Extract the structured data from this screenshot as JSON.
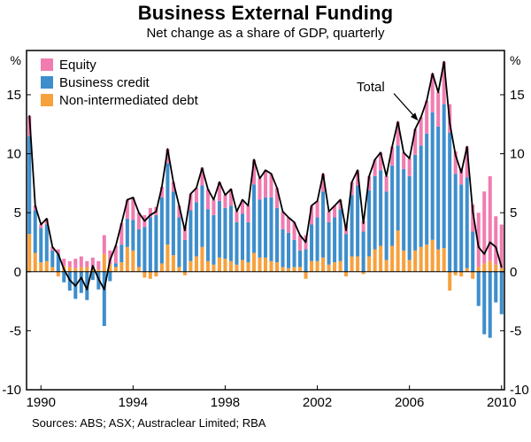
{
  "title": "Business External Funding",
  "subtitle": "Net change as a share of GDP, quarterly",
  "sources": "Sources: ABS; ASX; Austraclear Limited; RBA",
  "annotation": {
    "label": "Total"
  },
  "legend": [
    {
      "label": "Equity",
      "color": "#F17CB0"
    },
    {
      "label": "Business credit",
      "color": "#3E8ECC"
    },
    {
      "label": "Non-intermediated debt",
      "color": "#F7A13D"
    }
  ],
  "chart_data": {
    "type": "bar",
    "stacked": true,
    "grid": false,
    "legend_position": "top-left",
    "unit": "%",
    "ylim": [
      -10,
      18.75
    ],
    "yticks": [
      -10,
      -5,
      0,
      5,
      10,
      15
    ],
    "xticks": [
      {
        "label": "1990",
        "index": 2
      },
      {
        "label": "1994",
        "index": 18
      },
      {
        "label": "1998",
        "index": 34
      },
      {
        "label": "2002",
        "index": 50
      },
      {
        "label": "2006",
        "index": 66
      },
      {
        "label": "2010",
        "index": 82
      }
    ],
    "x_labels": [
      "1989Q3",
      "1989Q4",
      "1990Q1",
      "1990Q2",
      "1990Q3",
      "1990Q4",
      "1991Q1",
      "1991Q2",
      "1991Q3",
      "1991Q4",
      "1992Q1",
      "1992Q2",
      "1992Q3",
      "1992Q4",
      "1993Q1",
      "1993Q2",
      "1993Q3",
      "1993Q4",
      "1994Q1",
      "1994Q2",
      "1994Q3",
      "1994Q4",
      "1995Q1",
      "1995Q2",
      "1995Q3",
      "1995Q4",
      "1996Q1",
      "1996Q2",
      "1996Q3",
      "1996Q4",
      "1997Q1",
      "1997Q2",
      "1997Q3",
      "1997Q4",
      "1998Q1",
      "1998Q2",
      "1998Q3",
      "1998Q4",
      "1999Q1",
      "1999Q2",
      "1999Q3",
      "1999Q4",
      "2000Q1",
      "2000Q2",
      "2000Q3",
      "2000Q4",
      "2001Q1",
      "2001Q2",
      "2001Q3",
      "2001Q4",
      "2002Q1",
      "2002Q2",
      "2002Q3",
      "2002Q4",
      "2003Q1",
      "2003Q2",
      "2003Q3",
      "2003Q4",
      "2004Q1",
      "2004Q2",
      "2004Q3",
      "2004Q4",
      "2005Q1",
      "2005Q2",
      "2005Q3",
      "2005Q4",
      "2006Q1",
      "2006Q2",
      "2006Q3",
      "2006Q4",
      "2007Q1",
      "2007Q2",
      "2007Q3",
      "2007Q4",
      "2008Q1",
      "2008Q2",
      "2008Q3",
      "2008Q4",
      "2009Q1",
      "2009Q2",
      "2009Q3",
      "2009Q4",
      "2010Q1"
    ],
    "series": [
      {
        "name": "Equity",
        "type": "bar",
        "color": "#F17CB0",
        "values": [
          1.7,
          0.4,
          0.3,
          0.5,
          0.3,
          0.4,
          0.6,
          0.5,
          0.8,
          0.9,
          0.5,
          0.9,
          0.7,
          1.6,
          1.2,
          1.5,
          1.8,
          1.6,
          1.9,
          1.4,
          1.0,
          0.8,
          0.7,
          0.9,
          1.2,
          0.8,
          1.0,
          1.1,
          1.4,
          1.2,
          1.5,
          1.7,
          1.3,
          1.6,
          1.1,
          1.4,
          0.9,
          1.2,
          1.4,
          2.1,
          1.8,
          2.3,
          2.0,
          1.7,
          1.5,
          1.3,
          1.5,
          1.3,
          1.2,
          1.6,
          1.4,
          1.5,
          0.9,
          1.0,
          0.8,
          0.7,
          1.1,
          1.3,
          0.9,
          1.2,
          1.4,
          1.5,
          1.3,
          1.6,
          2.0,
          1.4,
          1.5,
          2.2,
          2.4,
          2.8,
          3.3,
          2.9,
          3.6,
          2.4,
          1.9,
          1.4,
          2.6,
          2.3,
          4.6,
          6.1,
          7.2,
          4.1,
          3.7
        ]
      },
      {
        "name": "Business credit",
        "type": "bar",
        "color": "#3E8ECC",
        "values": [
          8.3,
          3.6,
          2.9,
          3.1,
          1.4,
          1.5,
          -0.9,
          -1.6,
          -2.3,
          -1.8,
          -2.4,
          -0.7,
          -1.5,
          -4.6,
          -0.8,
          0.3,
          1.5,
          2.4,
          2.6,
          3.2,
          3.8,
          4.6,
          4.8,
          5.6,
          6.9,
          5.4,
          4.2,
          2.7,
          4.3,
          4.6,
          5.2,
          4.4,
          4.2,
          4.8,
          4.3,
          4.7,
          3.6,
          3.9,
          3.4,
          5.8,
          4.9,
          5.1,
          5.4,
          4.6,
          3.2,
          3.0,
          2.3,
          1.4,
          1.9,
          3.1,
          3.7,
          5.6,
          3.6,
          3.8,
          4.4,
          3.2,
          5.2,
          6.0,
          3.4,
          5.6,
          6.2,
          6.4,
          5.8,
          6.8,
          7.2,
          6.9,
          7.1,
          8.1,
          8.6,
          9.4,
          10.8,
          10.4,
          12.2,
          11.8,
          8.3,
          7.4,
          7.7,
          3.4,
          -2.9,
          -5.3,
          -5.6,
          -2.6,
          -3.6
        ]
      },
      {
        "name": "Non-intermediated debt",
        "type": "bar",
        "color": "#F7A13D",
        "values": [
          3.2,
          1.6,
          0.8,
          0.9,
          0.4,
          -0.4,
          0.5,
          0.4,
          0.3,
          0.4,
          0.4,
          0.3,
          0.2,
          1.5,
          0.6,
          0.4,
          0.8,
          2.1,
          1.8,
          0.4,
          -0.5,
          -0.6,
          -0.4,
          0.7,
          2.3,
          1.4,
          0.4,
          -0.3,
          0.9,
          1.3,
          2.1,
          0.9,
          0.6,
          1.2,
          1.1,
          0.9,
          0.6,
          1.0,
          0.8,
          1.6,
          1.2,
          1.2,
          0.9,
          0.8,
          0.4,
          0.3,
          0.4,
          0.4,
          -0.6,
          0.9,
          0.9,
          1.2,
          0.6,
          0.8,
          0.9,
          -0.4,
          1.3,
          1.3,
          -0.2,
          1.3,
          1.9,
          2.2,
          1.0,
          2.2,
          3.5,
          1.8,
          1.0,
          1.8,
          2.1,
          2.3,
          2.7,
          1.9,
          2.0,
          -1.6,
          -0.3,
          -0.4,
          0.3,
          -0.6,
          0.4,
          0.7,
          0.9,
          0.6,
          0.3
        ]
      },
      {
        "name": "Total",
        "type": "line",
        "color": "#000000",
        "values": [
          13.2,
          5.6,
          4.0,
          4.5,
          2.1,
          1.5,
          0.2,
          -0.7,
          -1.2,
          -0.5,
          -1.5,
          0.5,
          -0.6,
          -1.5,
          1.0,
          2.2,
          4.1,
          6.1,
          6.3,
          5.0,
          4.3,
          4.8,
          5.1,
          7.2,
          10.4,
          7.6,
          5.6,
          3.5,
          6.6,
          7.1,
          8.8,
          7.0,
          6.1,
          7.6,
          6.5,
          7.0,
          5.1,
          6.1,
          5.6,
          9.5,
          7.9,
          8.6,
          8.3,
          7.1,
          5.1,
          4.6,
          4.2,
          3.1,
          2.5,
          5.6,
          6.0,
          8.3,
          5.1,
          5.6,
          6.1,
          3.5,
          7.6,
          8.6,
          4.1,
          8.1,
          9.5,
          10.1,
          8.1,
          10.6,
          12.7,
          10.1,
          9.6,
          12.1,
          13.1,
          14.5,
          16.8,
          15.2,
          17.8,
          12.6,
          9.9,
          8.4,
          10.6,
          5.1,
          2.1,
          1.5,
          2.5,
          2.1,
          0.4
        ]
      }
    ]
  }
}
